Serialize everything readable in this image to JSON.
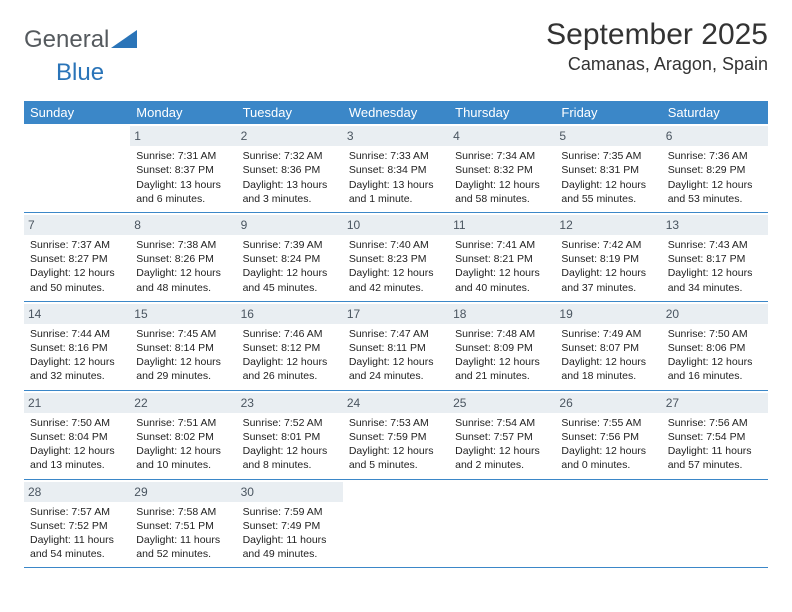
{
  "logo": {
    "text1": "General",
    "text2": "Blue"
  },
  "title": "September 2025",
  "location": "Camanas, Aragon, Spain",
  "colors": {
    "header_bg": "#3b87c8",
    "header_text": "#ffffff",
    "daynum_bg": "#e9eef2",
    "daynum_text": "#4a5560",
    "row_border": "#3b87c8",
    "logo_gray": "#555a5e",
    "logo_blue": "#2a74b8",
    "page_bg": "#ffffff"
  },
  "typography": {
    "month_title_fontsize": 30,
    "location_fontsize": 18,
    "th_fontsize": 13,
    "cell_fontsize": 10.5,
    "daynum_fontsize": 12,
    "logo_fontsize": 24
  },
  "weekdays": [
    "Sunday",
    "Monday",
    "Tuesday",
    "Wednesday",
    "Thursday",
    "Friday",
    "Saturday"
  ],
  "weeks": [
    [
      null,
      {
        "n": "1",
        "sr": "Sunrise: 7:31 AM",
        "ss": "Sunset: 8:37 PM",
        "dl": "Daylight: 13 hours and 6 minutes."
      },
      {
        "n": "2",
        "sr": "Sunrise: 7:32 AM",
        "ss": "Sunset: 8:36 PM",
        "dl": "Daylight: 13 hours and 3 minutes."
      },
      {
        "n": "3",
        "sr": "Sunrise: 7:33 AM",
        "ss": "Sunset: 8:34 PM",
        "dl": "Daylight: 13 hours and 1 minute."
      },
      {
        "n": "4",
        "sr": "Sunrise: 7:34 AM",
        "ss": "Sunset: 8:32 PM",
        "dl": "Daylight: 12 hours and 58 minutes."
      },
      {
        "n": "5",
        "sr": "Sunrise: 7:35 AM",
        "ss": "Sunset: 8:31 PM",
        "dl": "Daylight: 12 hours and 55 minutes."
      },
      {
        "n": "6",
        "sr": "Sunrise: 7:36 AM",
        "ss": "Sunset: 8:29 PM",
        "dl": "Daylight: 12 hours and 53 minutes."
      }
    ],
    [
      {
        "n": "7",
        "sr": "Sunrise: 7:37 AM",
        "ss": "Sunset: 8:27 PM",
        "dl": "Daylight: 12 hours and 50 minutes."
      },
      {
        "n": "8",
        "sr": "Sunrise: 7:38 AM",
        "ss": "Sunset: 8:26 PM",
        "dl": "Daylight: 12 hours and 48 minutes."
      },
      {
        "n": "9",
        "sr": "Sunrise: 7:39 AM",
        "ss": "Sunset: 8:24 PM",
        "dl": "Daylight: 12 hours and 45 minutes."
      },
      {
        "n": "10",
        "sr": "Sunrise: 7:40 AM",
        "ss": "Sunset: 8:23 PM",
        "dl": "Daylight: 12 hours and 42 minutes."
      },
      {
        "n": "11",
        "sr": "Sunrise: 7:41 AM",
        "ss": "Sunset: 8:21 PM",
        "dl": "Daylight: 12 hours and 40 minutes."
      },
      {
        "n": "12",
        "sr": "Sunrise: 7:42 AM",
        "ss": "Sunset: 8:19 PM",
        "dl": "Daylight: 12 hours and 37 minutes."
      },
      {
        "n": "13",
        "sr": "Sunrise: 7:43 AM",
        "ss": "Sunset: 8:17 PM",
        "dl": "Daylight: 12 hours and 34 minutes."
      }
    ],
    [
      {
        "n": "14",
        "sr": "Sunrise: 7:44 AM",
        "ss": "Sunset: 8:16 PM",
        "dl": "Daylight: 12 hours and 32 minutes."
      },
      {
        "n": "15",
        "sr": "Sunrise: 7:45 AM",
        "ss": "Sunset: 8:14 PM",
        "dl": "Daylight: 12 hours and 29 minutes."
      },
      {
        "n": "16",
        "sr": "Sunrise: 7:46 AM",
        "ss": "Sunset: 8:12 PM",
        "dl": "Daylight: 12 hours and 26 minutes."
      },
      {
        "n": "17",
        "sr": "Sunrise: 7:47 AM",
        "ss": "Sunset: 8:11 PM",
        "dl": "Daylight: 12 hours and 24 minutes."
      },
      {
        "n": "18",
        "sr": "Sunrise: 7:48 AM",
        "ss": "Sunset: 8:09 PM",
        "dl": "Daylight: 12 hours and 21 minutes."
      },
      {
        "n": "19",
        "sr": "Sunrise: 7:49 AM",
        "ss": "Sunset: 8:07 PM",
        "dl": "Daylight: 12 hours and 18 minutes."
      },
      {
        "n": "20",
        "sr": "Sunrise: 7:50 AM",
        "ss": "Sunset: 8:06 PM",
        "dl": "Daylight: 12 hours and 16 minutes."
      }
    ],
    [
      {
        "n": "21",
        "sr": "Sunrise: 7:50 AM",
        "ss": "Sunset: 8:04 PM",
        "dl": "Daylight: 12 hours and 13 minutes."
      },
      {
        "n": "22",
        "sr": "Sunrise: 7:51 AM",
        "ss": "Sunset: 8:02 PM",
        "dl": "Daylight: 12 hours and 10 minutes."
      },
      {
        "n": "23",
        "sr": "Sunrise: 7:52 AM",
        "ss": "Sunset: 8:01 PM",
        "dl": "Daylight: 12 hours and 8 minutes."
      },
      {
        "n": "24",
        "sr": "Sunrise: 7:53 AM",
        "ss": "Sunset: 7:59 PM",
        "dl": "Daylight: 12 hours and 5 minutes."
      },
      {
        "n": "25",
        "sr": "Sunrise: 7:54 AM",
        "ss": "Sunset: 7:57 PM",
        "dl": "Daylight: 12 hours and 2 minutes."
      },
      {
        "n": "26",
        "sr": "Sunrise: 7:55 AM",
        "ss": "Sunset: 7:56 PM",
        "dl": "Daylight: 12 hours and 0 minutes."
      },
      {
        "n": "27",
        "sr": "Sunrise: 7:56 AM",
        "ss": "Sunset: 7:54 PM",
        "dl": "Daylight: 11 hours and 57 minutes."
      }
    ],
    [
      {
        "n": "28",
        "sr": "Sunrise: 7:57 AM",
        "ss": "Sunset: 7:52 PM",
        "dl": "Daylight: 11 hours and 54 minutes."
      },
      {
        "n": "29",
        "sr": "Sunrise: 7:58 AM",
        "ss": "Sunset: 7:51 PM",
        "dl": "Daylight: 11 hours and 52 minutes."
      },
      {
        "n": "30",
        "sr": "Sunrise: 7:59 AM",
        "ss": "Sunset: 7:49 PM",
        "dl": "Daylight: 11 hours and 49 minutes."
      },
      null,
      null,
      null,
      null
    ]
  ]
}
